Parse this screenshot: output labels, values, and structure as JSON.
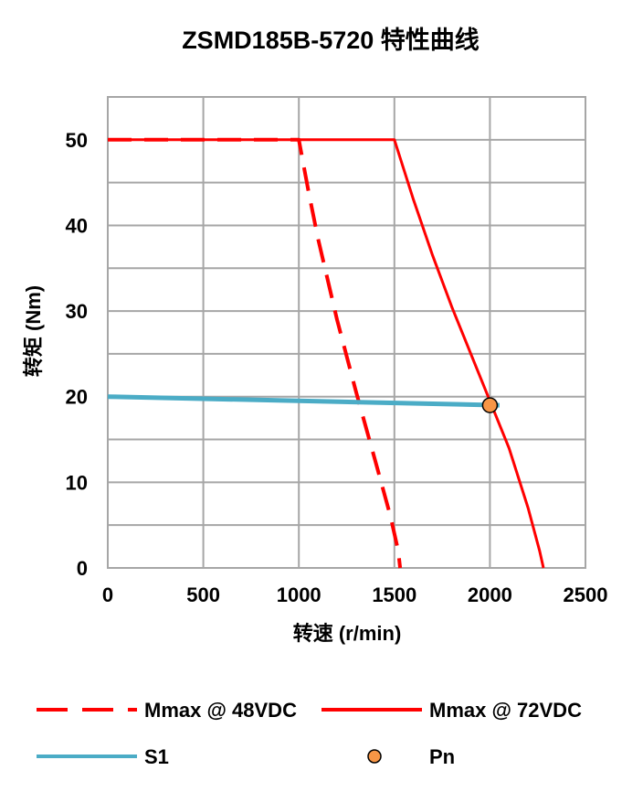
{
  "chart_data": {
    "type": "line",
    "title": "ZSMD185B-5720 特性曲线",
    "xlabel": "转速 (r/min)",
    "ylabel": "转矩 (Nm)",
    "xlim": [
      0,
      2500
    ],
    "ylim": [
      0,
      55
    ],
    "x_ticks": [
      "0",
      "500",
      "1000",
      "1500",
      "2000",
      "2500"
    ],
    "y_ticks": [
      "0",
      "10",
      "20",
      "30",
      "40",
      "50"
    ],
    "grid": true,
    "legend_position": "bottom",
    "series": [
      {
        "name": "Mmax @ 48VDC",
        "style": "dashed",
        "color": "#ff0000",
        "x": [
          0,
          1000,
          1050,
          1100,
          1200,
          1300,
          1400,
          1480,
          1520,
          1530
        ],
        "y": [
          50,
          50,
          44,
          38.5,
          29,
          20.5,
          12.5,
          6,
          2,
          0
        ]
      },
      {
        "name": "Mmax @ 72VDC",
        "style": "solid",
        "color": "#ff0000",
        "x": [
          0,
          1500,
          1600,
          1700,
          1800,
          1900,
          2000,
          2100,
          2200,
          2260,
          2280
        ],
        "y": [
          50,
          50,
          43,
          36.5,
          30.5,
          25,
          19.5,
          14,
          7,
          2,
          0
        ]
      },
      {
        "name": "S1",
        "style": "solid",
        "color": "#4bacc6",
        "x": [
          0,
          2050
        ],
        "y": [
          20,
          19
        ]
      },
      {
        "name": "Pn",
        "style": "marker",
        "color": "#f79646",
        "x": [
          2000
        ],
        "y": [
          19
        ]
      }
    ]
  }
}
